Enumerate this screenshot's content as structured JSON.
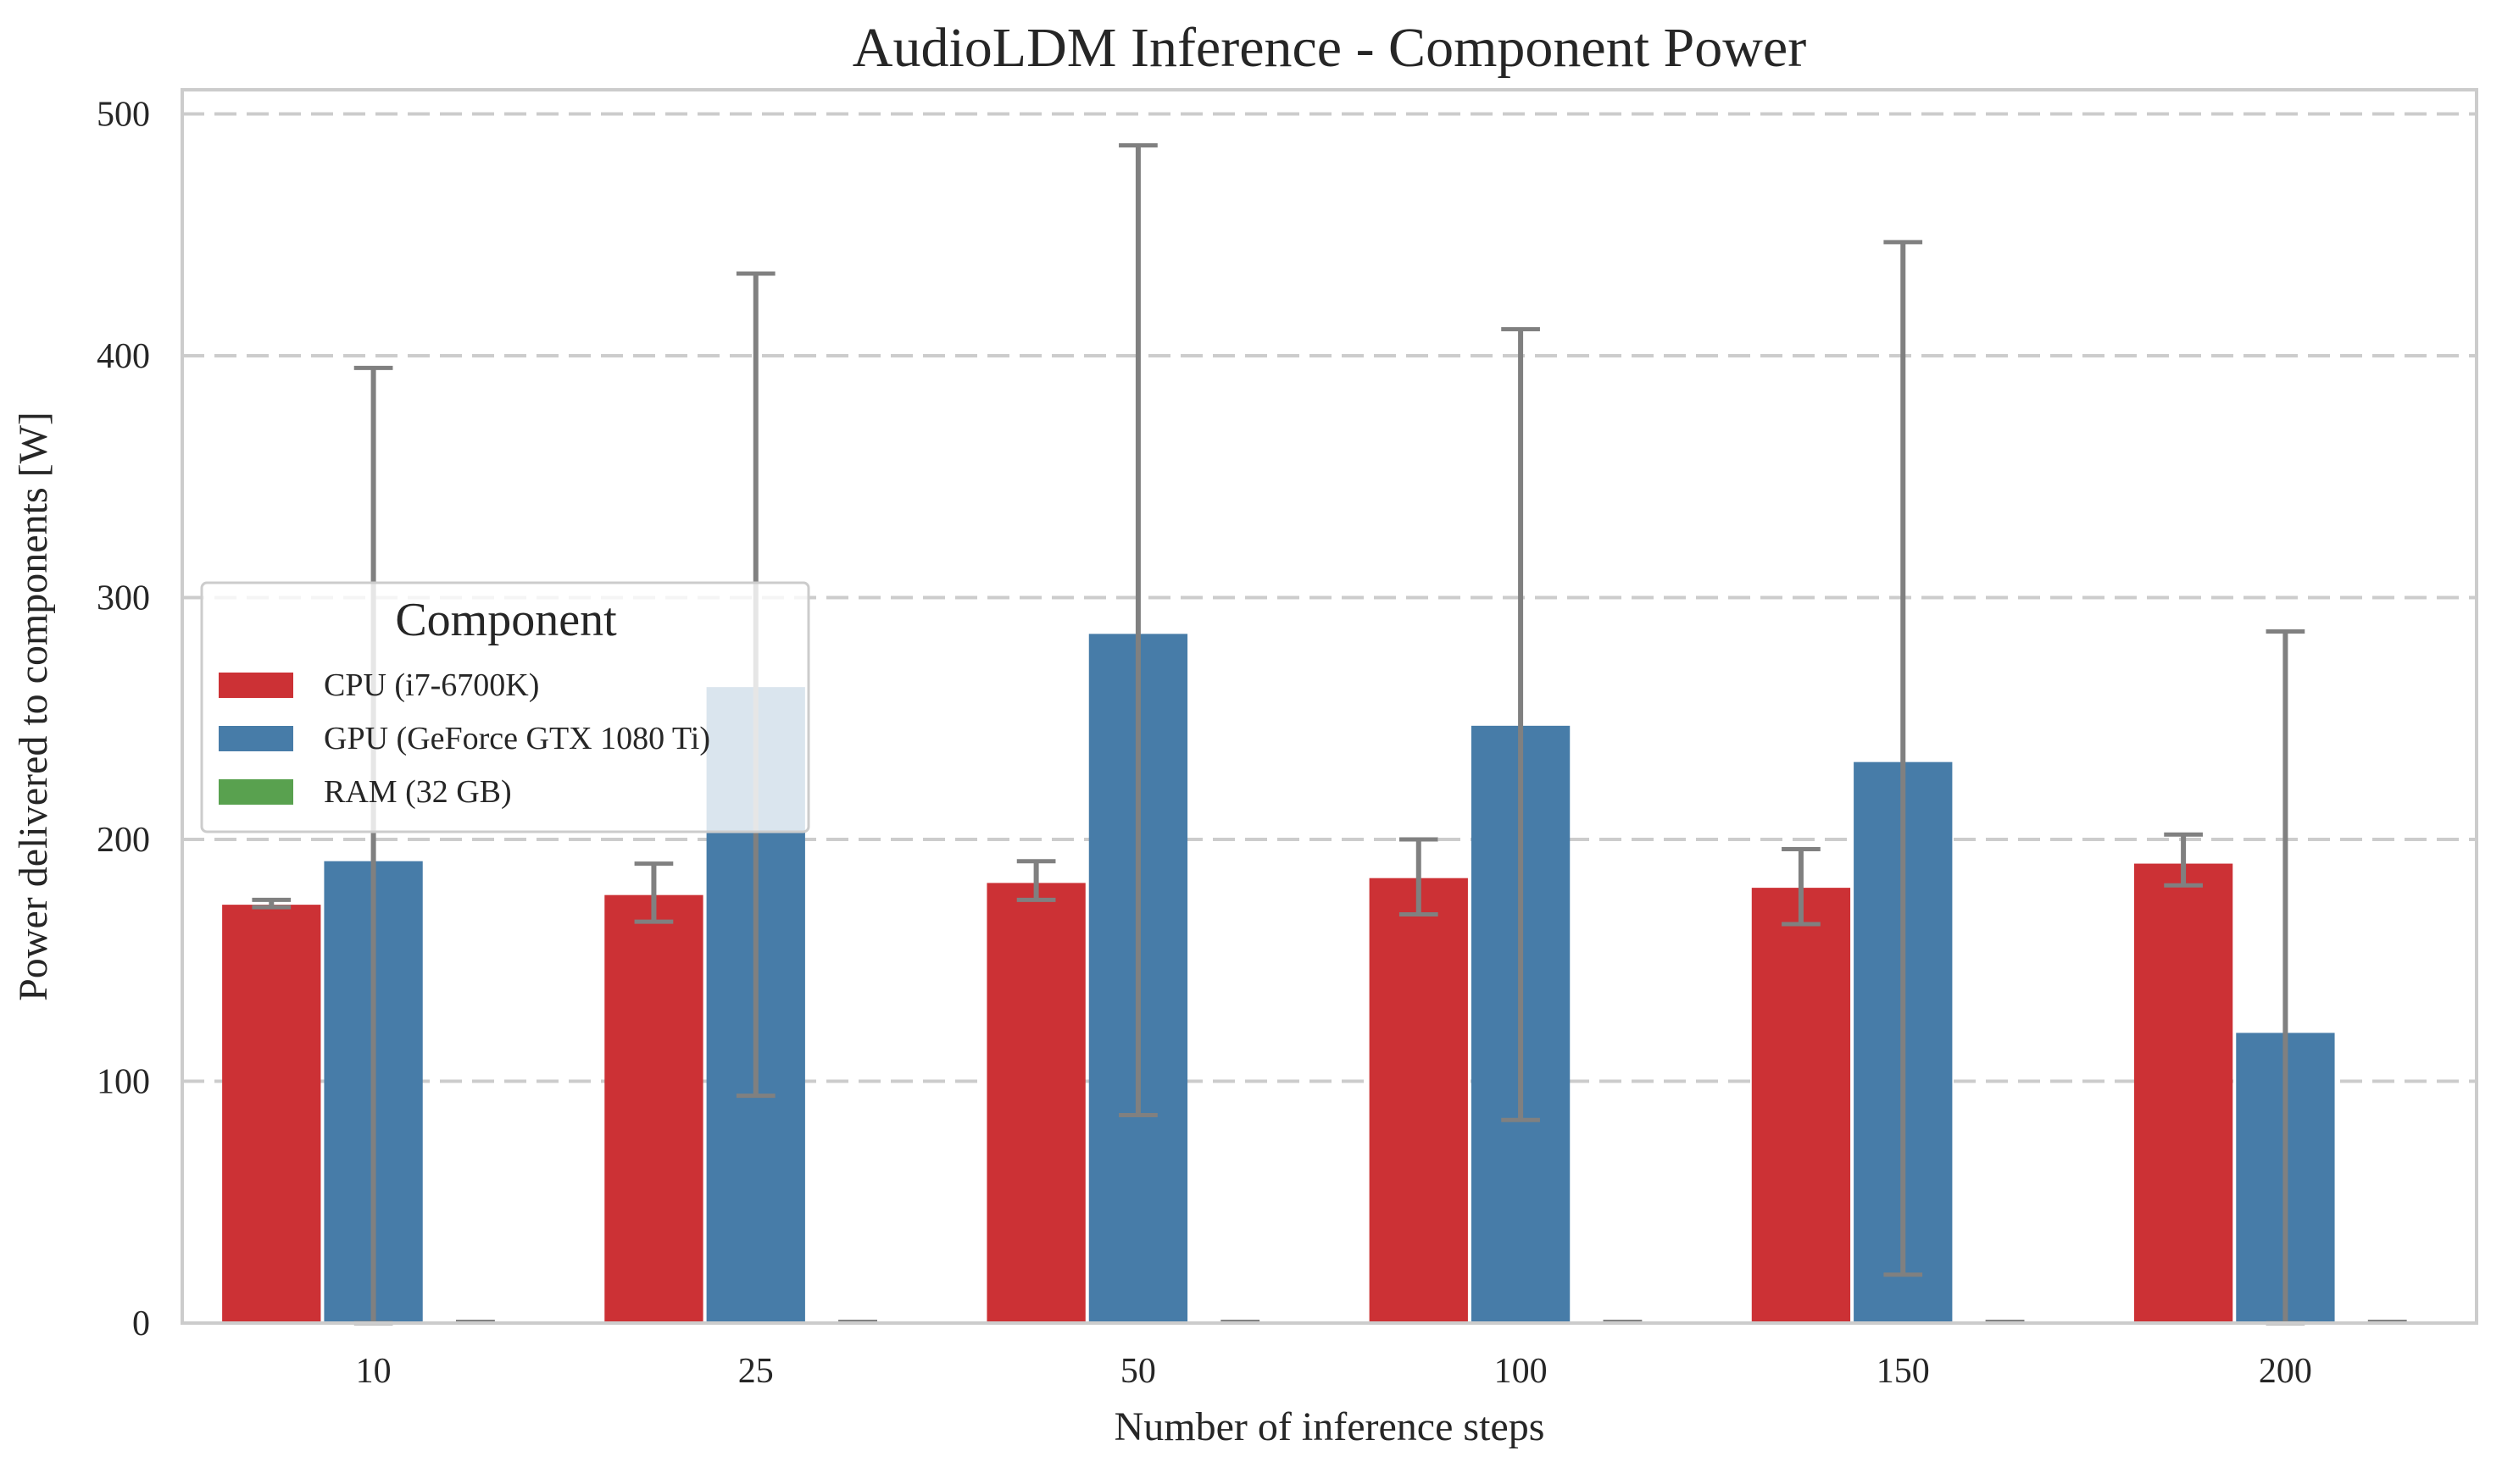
{
  "chart_data": {
    "type": "bar",
    "title": "AudioLDM Inference - Component Power",
    "xlabel": "Number of inference steps",
    "ylabel": "Power delivered to components [W]",
    "categories": [
      "10",
      "25",
      "50",
      "100",
      "150",
      "200"
    ],
    "ylim": [
      0,
      510
    ],
    "yticks": [
      0,
      100,
      200,
      300,
      400,
      500
    ],
    "grid": "horizontal dashed",
    "legend": {
      "title": "Component",
      "placement": "center-left"
    },
    "series": [
      {
        "name": "CPU (i7-6700K)",
        "color": "#cc3135",
        "values": [
          173,
          177,
          182,
          184,
          180,
          190
        ],
        "error_low": [
          172,
          166,
          175,
          169,
          165,
          181
        ],
        "error_high": [
          175,
          190,
          191,
          200,
          196,
          202
        ]
      },
      {
        "name": "GPU (GeForce GTX 1080 Ti)",
        "color": "#477ca8",
        "values": [
          191,
          263,
          285,
          247,
          232,
          120
        ],
        "error_low": [
          0,
          94,
          86,
          84,
          20,
          0
        ],
        "error_high": [
          395,
          434,
          487,
          411,
          447,
          286
        ]
      },
      {
        "name": "RAM (32 GB)",
        "color": "#59a14f",
        "values": [
          0.5,
          0.5,
          0.5,
          0.5,
          0.5,
          0.5
        ],
        "error_low": [
          0.5,
          0.5,
          0.5,
          0.5,
          0.5,
          0.5
        ],
        "error_high": [
          0.5,
          0.5,
          0.5,
          0.5,
          0.5,
          0.5
        ]
      }
    ],
    "colors": {
      "error_bar": "#808080",
      "grid": "#cccccc",
      "frame": "#cccccc"
    }
  }
}
